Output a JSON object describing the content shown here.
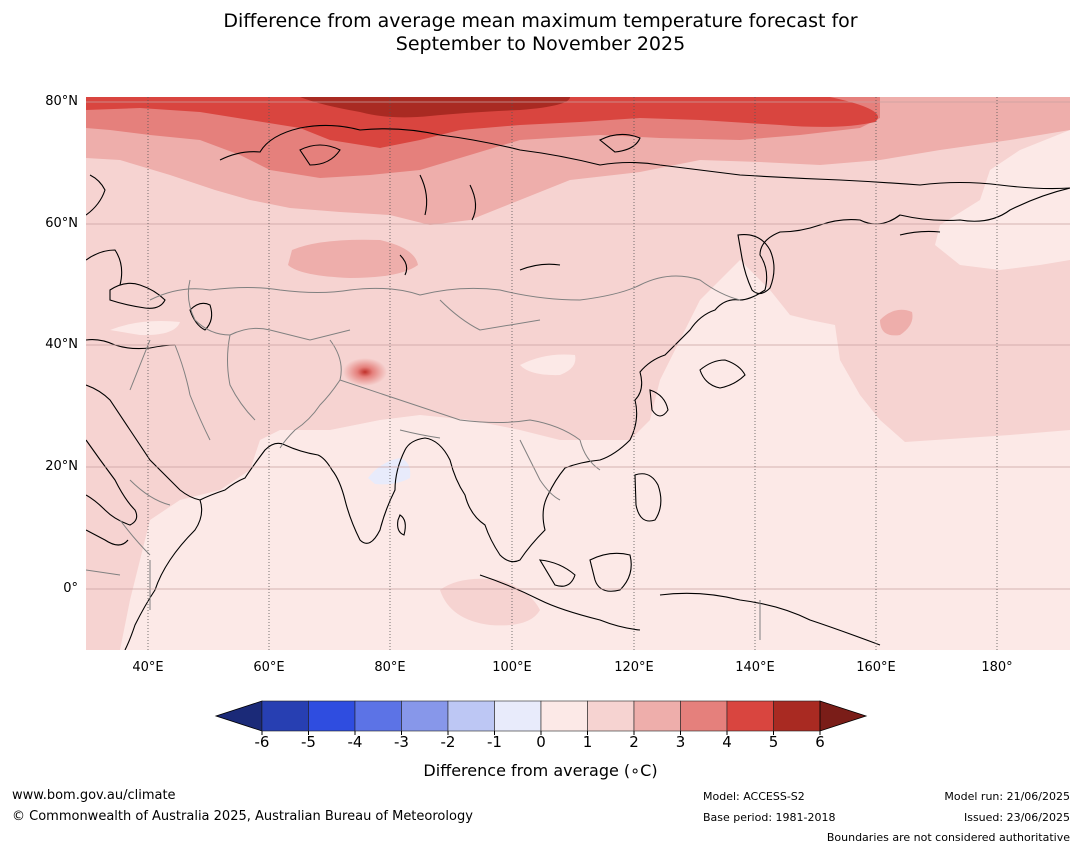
{
  "title_line1": "Difference from average mean maximum temperature forecast for",
  "title_line2": "September to November 2025",
  "lat_labels": [
    "80°N",
    "60°N",
    "40°N",
    "20°N",
    "0°"
  ],
  "lon_labels": [
    "40°E",
    "60°E",
    "80°E",
    "100°E",
    "120°E",
    "140°E",
    "160°E",
    "180°"
  ],
  "colorbar": {
    "title": "Difference from average (∘C)",
    "tick_labels": [
      "-6",
      "-5",
      "-4",
      "-3",
      "-2",
      "-1",
      "0",
      "1",
      "2",
      "3",
      "4",
      "5",
      "6"
    ],
    "colors": [
      "#1b2a78",
      "#273fb2",
      "#2f4de0",
      "#5c73e6",
      "#8797ea",
      "#bdc7f4",
      "#e8ebfb",
      "#fce9e7",
      "#f6d3d1",
      "#eeaeab",
      "#e5807c",
      "#d9453f",
      "#a92a22",
      "#7a1d18"
    ]
  },
  "footer": {
    "website": "www.bom.gov.au/climate",
    "copyright": "© Commonwealth of Australia 2025, Australian Bureau of Meteorology",
    "model": "Model: ACCESS-S2",
    "base_period": "Base period: 1981-2018",
    "model_run": "Model run: 21/06/2025",
    "issued": "Issued: 23/06/2025",
    "boundaries": "Boundaries are not considered authoritative"
  }
}
